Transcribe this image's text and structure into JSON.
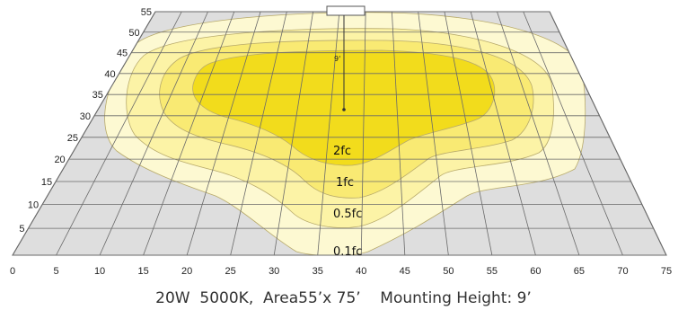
{
  "figure": {
    "x_ticks": [
      "0",
      "5",
      "10",
      "15",
      "20",
      "25",
      "30",
      "35",
      "40",
      "45",
      "50",
      "55",
      "60",
      "65",
      "70",
      "75"
    ],
    "y_ticks": [
      "5",
      "10",
      "15",
      "20",
      "25",
      "30",
      "35",
      "40",
      "45",
      "50",
      "55"
    ],
    "height_marker": "9'",
    "contour_labels": [
      "2fc",
      "1fc",
      "0.5fc",
      "0.1fc"
    ],
    "colors": {
      "floor": "#dedede",
      "grid": "#6a6a6a",
      "contour_0_1fc": "#fdf9d2",
      "contour_0_5fc": "#fcf3a6",
      "contour_1fc": "#f9ea73",
      "contour_2fc": "#f2dc1c",
      "contour_edge": "#b8aa6a"
    }
  },
  "caption": "20W  5000K,  Area55’x 75’    Mounting Height: 9’"
}
